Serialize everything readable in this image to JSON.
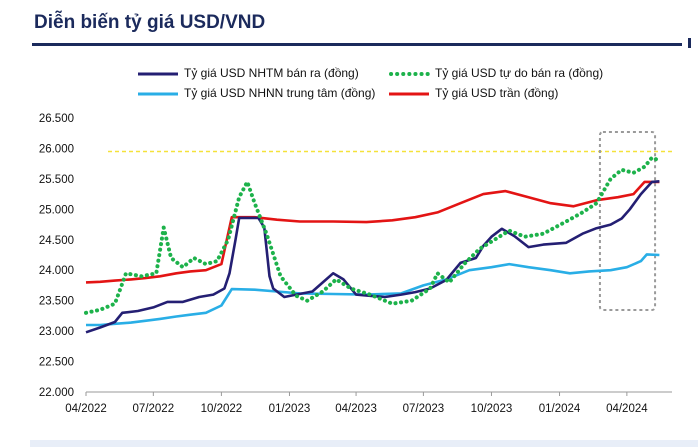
{
  "header": {
    "title": "Diễn biến tỷ giá USD/VND"
  },
  "colors": {
    "nhtm": "#241f73",
    "free": "#1db24b",
    "nhnn": "#29aee6",
    "ceiling": "#e31414",
    "reference": "#f5e23a",
    "highlight": "#9a9a9a",
    "title": "#1b2a5c"
  },
  "chart_data": {
    "type": "line",
    "title": "Diễn biến tỷ giá USD/VND",
    "xlabel": "",
    "ylabel": "",
    "ylim": [
      22000,
      26500
    ],
    "y_ticks": [
      "22.000",
      "22.500",
      "23.000",
      "23.500",
      "24.000",
      "24.500",
      "25.000",
      "25.500",
      "26.000",
      "26.500"
    ],
    "x_ticks": [
      "04/2022",
      "07/2022",
      "10/2022",
      "01/2023",
      "04/2023",
      "07/2023",
      "10/2023",
      "01/2024",
      "04/2024"
    ],
    "grid": false,
    "legend_position": "top",
    "reference_line": {
      "y": 25950,
      "style": "dashed"
    },
    "highlight_period": {
      "from": "2024-03",
      "to": "2024-05"
    },
    "series": [
      {
        "name": "Tỷ giá USD NHTM bán ra (đồng)",
        "color": "#241f73",
        "style": "solid",
        "points": [
          [
            "2022-04-01",
            22980
          ],
          [
            "2022-04-20",
            23060
          ],
          [
            "2022-05-10",
            23150
          ],
          [
            "2022-05-20",
            23300
          ],
          [
            "2022-06-10",
            23330
          ],
          [
            "2022-07-01",
            23390
          ],
          [
            "2022-07-20",
            23480
          ],
          [
            "2022-08-10",
            23480
          ],
          [
            "2022-09-01",
            23560
          ],
          [
            "2022-09-20",
            23600
          ],
          [
            "2022-10-05",
            23700
          ],
          [
            "2022-10-12",
            23950
          ],
          [
            "2022-10-20",
            24500
          ],
          [
            "2022-10-25",
            24860
          ],
          [
            "2022-11-20",
            24860
          ],
          [
            "2022-11-28",
            24700
          ],
          [
            "2022-12-05",
            23900
          ],
          [
            "2022-12-10",
            23700
          ],
          [
            "2022-12-25",
            23560
          ],
          [
            "2023-01-10",
            23600
          ],
          [
            "2023-02-01",
            23650
          ],
          [
            "2023-02-15",
            23800
          ],
          [
            "2023-03-01",
            23950
          ],
          [
            "2023-03-15",
            23850
          ],
          [
            "2023-04-01",
            23600
          ],
          [
            "2023-04-20",
            23580
          ],
          [
            "2023-05-10",
            23560
          ],
          [
            "2023-06-01",
            23600
          ],
          [
            "2023-06-20",
            23640
          ],
          [
            "2023-07-10",
            23700
          ],
          [
            "2023-08-01",
            23840
          ],
          [
            "2023-08-20",
            24120
          ],
          [
            "2023-09-10",
            24200
          ],
          [
            "2023-09-20",
            24400
          ],
          [
            "2023-10-01",
            24550
          ],
          [
            "2023-10-15",
            24680
          ],
          [
            "2023-11-01",
            24560
          ],
          [
            "2023-11-20",
            24380
          ],
          [
            "2023-12-10",
            24420
          ],
          [
            "2024-01-10",
            24450
          ],
          [
            "2024-02-01",
            24600
          ],
          [
            "2024-02-20",
            24690
          ],
          [
            "2024-03-10",
            24750
          ],
          [
            "2024-03-25",
            24850
          ],
          [
            "2024-04-05",
            25000
          ],
          [
            "2024-04-20",
            25250
          ],
          [
            "2024-05-05",
            25450
          ],
          [
            "2024-05-15",
            25460
          ]
        ]
      },
      {
        "name": "Tỷ giá USD tự do bán ra (đồng)",
        "color": "#1db24b",
        "style": "dotted",
        "points": [
          [
            "2022-04-01",
            23300
          ],
          [
            "2022-04-20",
            23350
          ],
          [
            "2022-05-10",
            23450
          ],
          [
            "2022-05-25",
            23950
          ],
          [
            "2022-06-15",
            23900
          ],
          [
            "2022-07-05",
            23950
          ],
          [
            "2022-07-15",
            24700
          ],
          [
            "2022-07-25",
            24200
          ],
          [
            "2022-08-10",
            24050
          ],
          [
            "2022-08-25",
            24200
          ],
          [
            "2022-09-10",
            24100
          ],
          [
            "2022-09-25",
            24150
          ],
          [
            "2022-10-10",
            24500
          ],
          [
            "2022-10-25",
            25200
          ],
          [
            "2022-11-05",
            25450
          ],
          [
            "2022-11-15",
            25100
          ],
          [
            "2022-12-01",
            24600
          ],
          [
            "2022-12-20",
            23900
          ],
          [
            "2023-01-10",
            23580
          ],
          [
            "2023-01-25",
            23500
          ],
          [
            "2023-02-15",
            23650
          ],
          [
            "2023-03-05",
            23850
          ],
          [
            "2023-03-25",
            23700
          ],
          [
            "2023-04-20",
            23600
          ],
          [
            "2023-05-20",
            23450
          ],
          [
            "2023-06-15",
            23500
          ],
          [
            "2023-07-10",
            23700
          ],
          [
            "2023-07-20",
            23950
          ],
          [
            "2023-08-05",
            23800
          ],
          [
            "2023-08-25",
            24100
          ],
          [
            "2023-09-15",
            24350
          ],
          [
            "2023-10-05",
            24500
          ],
          [
            "2023-10-25",
            24650
          ],
          [
            "2023-11-15",
            24550
          ],
          [
            "2023-12-10",
            24600
          ],
          [
            "2024-01-10",
            24800
          ],
          [
            "2024-02-01",
            24950
          ],
          [
            "2024-02-20",
            25100
          ],
          [
            "2024-03-10",
            25500
          ],
          [
            "2024-03-25",
            25650
          ],
          [
            "2024-04-10",
            25600
          ],
          [
            "2024-04-25",
            25700
          ],
          [
            "2024-05-05",
            25850
          ],
          [
            "2024-05-15",
            25800
          ]
        ]
      },
      {
        "name": "Tỷ giá USD NHNN trung tâm (đồng)",
        "color": "#29aee6",
        "style": "solid",
        "points": [
          [
            "2022-04-01",
            23100
          ],
          [
            "2022-04-20",
            23100
          ],
          [
            "2022-05-10",
            23120
          ],
          [
            "2022-06-01",
            23140
          ],
          [
            "2022-06-20",
            23170
          ],
          [
            "2022-07-10",
            23200
          ],
          [
            "2022-08-01",
            23240
          ],
          [
            "2022-08-20",
            23270
          ],
          [
            "2022-09-10",
            23300
          ],
          [
            "2022-10-01",
            23420
          ],
          [
            "2022-10-15",
            23690
          ],
          [
            "2022-11-15",
            23680
          ],
          [
            "2022-12-15",
            23650
          ],
          [
            "2023-01-15",
            23620
          ],
          [
            "2023-03-01",
            23610
          ],
          [
            "2023-04-15",
            23600
          ],
          [
            "2023-06-01",
            23620
          ],
          [
            "2023-07-01",
            23750
          ],
          [
            "2023-08-01",
            23850
          ],
          [
            "2023-09-01",
            24000
          ],
          [
            "2023-10-01",
            24050
          ],
          [
            "2023-10-25",
            24100
          ],
          [
            "2023-11-20",
            24050
          ],
          [
            "2023-12-20",
            24000
          ],
          [
            "2024-01-15",
            23950
          ],
          [
            "2024-02-10",
            23980
          ],
          [
            "2024-03-10",
            24000
          ],
          [
            "2024-04-01",
            24050
          ],
          [
            "2024-04-20",
            24150
          ],
          [
            "2024-04-28",
            24260
          ],
          [
            "2024-05-15",
            24250
          ]
        ]
      },
      {
        "name": "Tỷ giá USD trần (đồng)",
        "color": "#e31414",
        "style": "solid",
        "points": [
          [
            "2022-04-01",
            23800
          ],
          [
            "2022-04-20",
            23810
          ],
          [
            "2022-05-10",
            23830
          ],
          [
            "2022-06-01",
            23850
          ],
          [
            "2022-06-20",
            23870
          ],
          [
            "2022-07-10",
            23900
          ],
          [
            "2022-08-01",
            23950
          ],
          [
            "2022-08-20",
            23980
          ],
          [
            "2022-09-10",
            24000
          ],
          [
            "2022-10-01",
            24100
          ],
          [
            "2022-10-15",
            24870
          ],
          [
            "2022-11-15",
            24870
          ],
          [
            "2022-12-15",
            24830
          ],
          [
            "2023-01-15",
            24800
          ],
          [
            "2023-03-01",
            24800
          ],
          [
            "2023-04-15",
            24790
          ],
          [
            "2023-05-20",
            24820
          ],
          [
            "2023-06-20",
            24870
          ],
          [
            "2023-07-20",
            24950
          ],
          [
            "2023-08-20",
            25100
          ],
          [
            "2023-09-20",
            25250
          ],
          [
            "2023-10-20",
            25300
          ],
          [
            "2023-11-20",
            25200
          ],
          [
            "2023-12-20",
            25100
          ],
          [
            "2024-01-20",
            25050
          ],
          [
            "2024-02-20",
            25150
          ],
          [
            "2024-03-20",
            25200
          ],
          [
            "2024-04-10",
            25250
          ],
          [
            "2024-04-25",
            25450
          ],
          [
            "2024-05-15",
            25450
          ]
        ]
      }
    ]
  }
}
